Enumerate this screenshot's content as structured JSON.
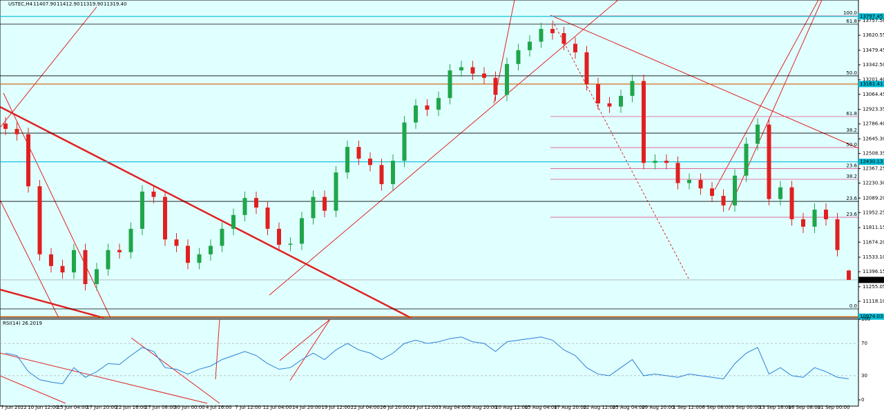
{
  "chart_data": {
    "type": "candlestick",
    "header": {
      "symbol": "USTEC,H4",
      "ohlc": [
        "11407.90",
        "11412.90",
        "11319.90",
        "11319.40"
      ]
    },
    "open": [
      12790,
      12740,
      12690,
      12200,
      11560,
      11450,
      11390,
      11600,
      11280,
      11420,
      11600,
      11580,
      11800,
      12150,
      12100,
      11700,
      11640,
      11480,
      11560,
      11640,
      11800,
      11930,
      12090,
      12000,
      11800,
      11650,
      11660,
      11900,
      12100,
      11970,
      12330,
      12570,
      12460,
      12400,
      12220,
      12440,
      12800,
      12960,
      12920,
      13030,
      13290,
      13320,
      13260,
      13220,
      13060,
      13350,
      13480,
      13560,
      13680,
      13640,
      13540,
      13460,
      13160,
      12980,
      12950,
      13050,
      13190,
      12420,
      12440,
      12420,
      12230,
      12260,
      12180,
      12110,
      12020,
      12300,
      12600,
      12780,
      12080,
      12190,
      11890,
      11820,
      11980,
      11890,
      11407.9
    ],
    "high": [
      12850,
      12800,
      12750,
      12260,
      11620,
      11510,
      11660,
      11660,
      11480,
      11660,
      11660,
      11860,
      12210,
      12210,
      12160,
      11760,
      11700,
      11620,
      11700,
      11860,
      11990,
      12150,
      12150,
      12060,
      11860,
      11720,
      11960,
      12160,
      12160,
      12390,
      12630,
      12630,
      12520,
      12460,
      12500,
      12860,
      13020,
      13020,
      13090,
      13350,
      13380,
      13380,
      13320,
      13280,
      13410,
      13540,
      13620,
      13740,
      13740,
      13700,
      13600,
      13520,
      13220,
      13040,
      13110,
      13250,
      13250,
      12500,
      12500,
      12480,
      12320,
      12320,
      12240,
      12170,
      12360,
      12660,
      12840,
      12840,
      12250,
      12250,
      11950,
      12040,
      12040,
      11950,
      11412.9
    ],
    "low": [
      12680,
      12630,
      12140,
      11500,
      11390,
      11330,
      11330,
      11220,
      11220,
      11360,
      11520,
      11520,
      11740,
      12040,
      11640,
      11580,
      11420,
      11420,
      11500,
      11580,
      11740,
      11870,
      11940,
      11740,
      11590,
      11590,
      11600,
      11840,
      11910,
      11910,
      12270,
      12400,
      12340,
      12160,
      12160,
      12380,
      12740,
      12860,
      12860,
      12970,
      13230,
      13200,
      13160,
      13000,
      13000,
      13290,
      13420,
      13500,
      13580,
      13480,
      13400,
      13100,
      12920,
      12890,
      12890,
      12990,
      12360,
      12360,
      12360,
      12170,
      12170,
      12120,
      12050,
      11960,
      11960,
      12240,
      12540,
      12020,
      12020,
      11830,
      11760,
      11760,
      11830,
      11540,
      11319.9
    ],
    "close": [
      12740,
      12690,
      12200,
      11560,
      11450,
      11390,
      11600,
      11280,
      11420,
      11600,
      11580,
      11800,
      12150,
      12100,
      11700,
      11640,
      11480,
      11560,
      11640,
      11800,
      11930,
      12090,
      12000,
      11800,
      11650,
      11660,
      11900,
      12100,
      11970,
      12330,
      12570,
      12460,
      12400,
      12220,
      12440,
      12800,
      12960,
      12920,
      13030,
      13290,
      13320,
      13260,
      13220,
      13060,
      13350,
      13480,
      13560,
      13680,
      13640,
      13540,
      13460,
      13160,
      12980,
      12950,
      13050,
      13190,
      12420,
      12440,
      12420,
      12230,
      12260,
      12180,
      12110,
      12020,
      12300,
      12600,
      12780,
      12080,
      12190,
      11890,
      11820,
      11980,
      11890,
      11600,
      11319.4
    ],
    "up_color": "#1fa64a",
    "down_color": "#e02020",
    "ylim": [
      10969,
      13952
    ],
    "yticks": [
      {
        "value": 13757.5,
        "label": "13757.50"
      },
      {
        "value": 13620.55,
        "label": "13620.55"
      },
      {
        "value": 13479.45,
        "label": "13479.45"
      },
      {
        "value": 13342.5,
        "label": "13342.50"
      },
      {
        "value": 13201.4,
        "label": "13201.40"
      },
      {
        "value": 13064.45,
        "label": "13064.45"
      },
      {
        "value": 12923.35,
        "label": "12923.35"
      },
      {
        "value": 12786.4,
        "label": "12786.40"
      },
      {
        "value": 12645.3,
        "label": "12645.30"
      },
      {
        "value": 12508.35,
        "label": "12508.35"
      },
      {
        "value": 12367.25,
        "label": "12367.25"
      },
      {
        "value": 12230.3,
        "label": "12230.30"
      },
      {
        "value": 12089.2,
        "label": "12089.20"
      },
      {
        "value": 11952.25,
        "label": "11952.25"
      },
      {
        "value": 11811.15,
        "label": "11811.15"
      },
      {
        "value": 11674.2,
        "label": "11674.20"
      },
      {
        "value": 11533.1,
        "label": "11533.10"
      },
      {
        "value": 11396.15,
        "label": "11396.15"
      },
      {
        "value": 11255.05,
        "label": "11255.05"
      },
      {
        "value": 11118.1,
        "label": "11118.10"
      }
    ],
    "price_levels": [
      {
        "value": 13797.45,
        "label": "13797.45",
        "color": "#00bcd4"
      },
      {
        "value": 13161.41,
        "label": "13161.41",
        "color": "#00bcd4"
      },
      {
        "value": 12430.13,
        "label": "12430.13",
        "color": "#00bcd4"
      },
      {
        "value": 11319.4,
        "label": "11319.40",
        "color": "#000000"
      },
      {
        "value": 10974.03,
        "label": "10974.03",
        "color": "#00bcd4"
      }
    ],
    "fib_levels": [
      {
        "label": "61.8",
        "value": 13725,
        "color": "#000000"
      },
      {
        "label": "50.0",
        "value": 13239,
        "color": "#000000"
      },
      {
        "label": "38.2",
        "value": 12700,
        "color": "#000000"
      },
      {
        "label": "23.6",
        "value": 12058,
        "color": "#000000"
      },
      {
        "label": "0.0",
        "value": 11047,
        "color": "#000000"
      },
      {
        "label": "100.0",
        "value": 13803,
        "color": "#e0508a"
      },
      {
        "label": "61.8",
        "value": 12856,
        "color": "#e0508a"
      },
      {
        "label": "50.0",
        "value": 12564,
        "color": "#e0508a"
      },
      {
        "label": "23.6",
        "value": 12367,
        "color": "#e0508a"
      },
      {
        "label": "38.2",
        "value": 12266,
        "color": "#e0508a"
      },
      {
        "label": "23.6",
        "value": 11909,
        "color": "#e0508a"
      }
    ],
    "xticks": [
      "7 Jun 2022",
      "10 Jun 12:00",
      "15 Jun 04:00",
      "17 Jun 20:00",
      "22 Jun 16:00",
      "27 Jun 08:00",
      "30 Jun 00:00",
      "4 Jul 16:00",
      "7 Jul 12:00",
      "12 Jul 04:00",
      "14 Jul 20:00",
      "19 Jul 12:00",
      "22 Jul 04:00",
      "26 Jul 20:00",
      "29 Jul 12:00",
      "3 Aug 04:00",
      "5 Aug 20:00",
      "10 Aug 12:00",
      "15 Aug 04:00",
      "17 Aug 20:00",
      "22 Aug 12:00",
      "25 Aug 04:00",
      "29 Aug 20:00",
      "1 Sep 12:00",
      "6 Sep 08:00",
      "9 Sep 00:00",
      "13 Sep 16:00",
      "16 Sep 08:00",
      "21 Sep 00:00"
    ],
    "rsi": {
      "title": "RSI(14) 26.2019",
      "color": "#2a7fd4",
      "ylim": [
        0,
        100
      ],
      "yticks": [
        100,
        70,
        30,
        0
      ],
      "values": [
        58,
        55,
        35,
        25,
        22,
        20,
        40,
        28,
        35,
        45,
        44,
        55,
        65,
        60,
        40,
        38,
        32,
        38,
        42,
        50,
        55,
        60,
        55,
        45,
        38,
        40,
        50,
        58,
        50,
        62,
        70,
        62,
        58,
        50,
        58,
        70,
        74,
        70,
        72,
        76,
        78,
        72,
        70,
        60,
        72,
        74,
        76,
        78,
        74,
        62,
        55,
        40,
        32,
        30,
        40,
        50,
        30,
        32,
        30,
        28,
        32,
        30,
        28,
        26,
        45,
        58,
        65,
        32,
        40,
        30,
        28,
        40,
        35,
        28,
        26.2019
      ]
    }
  }
}
